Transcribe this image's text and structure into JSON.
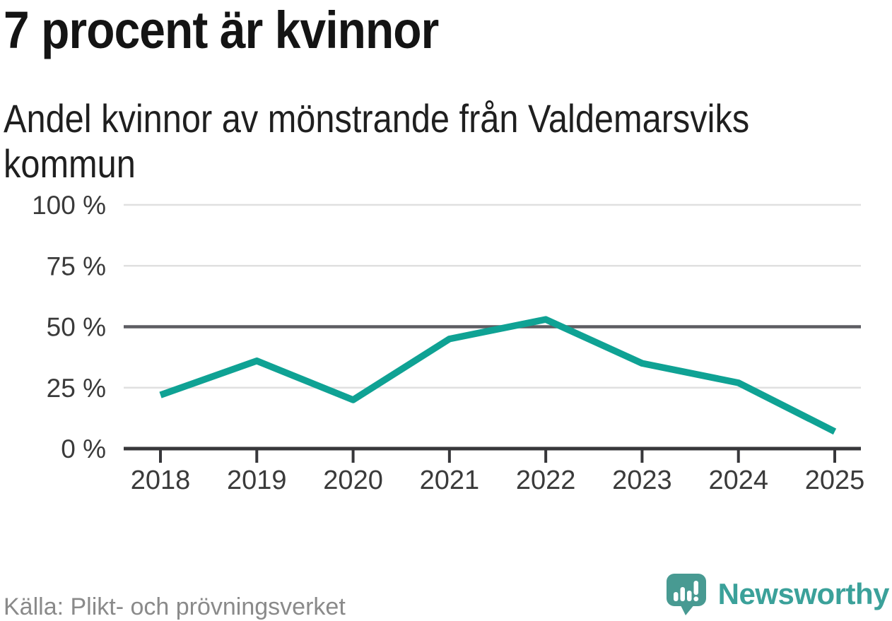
{
  "page": {
    "title": "7 procent är kvinnor",
    "subtitle": "Andel kvinnor av mönstrande från Valdemarsviks kommun",
    "source": "Källa: Plikt- och prövningsverket"
  },
  "brand": {
    "wordmark": "Newsworthy",
    "logo_icon": "newsworthy-speech-bubble-bar-chart-icon"
  },
  "colors": {
    "line": "#0fa294",
    "grid": "#e0e0e0",
    "grid_emphasis": "#5d5d62",
    "axis": "#37373a",
    "tick_text": "#3a3a3a",
    "title_text": "#141414",
    "source_text": "#8a8a8a",
    "brand_teal": "#3ba19a",
    "logo_teal": "#489a92"
  },
  "chart_data": {
    "type": "line",
    "title": "7 procent är kvinnor",
    "subtitle": "Andel kvinnor av mönstrande från Valdemarsviks kommun",
    "x": [
      2018,
      2019,
      2020,
      2021,
      2022,
      2023,
      2024,
      2025
    ],
    "series": [
      {
        "name": "Andel kvinnor av mönstrande",
        "color": "#0fa294",
        "values": [
          22,
          36,
          20,
          45,
          53,
          35,
          27,
          7
        ]
      }
    ],
    "xlabel": "",
    "ylabel": "",
    "ylim": [
      0,
      100
    ],
    "yticks": [
      0,
      25,
      50,
      75,
      100
    ],
    "ytick_format": "{v} %",
    "emphasized_gridline": 50,
    "grid": "horizontal",
    "legend": "none",
    "marker": "none"
  }
}
